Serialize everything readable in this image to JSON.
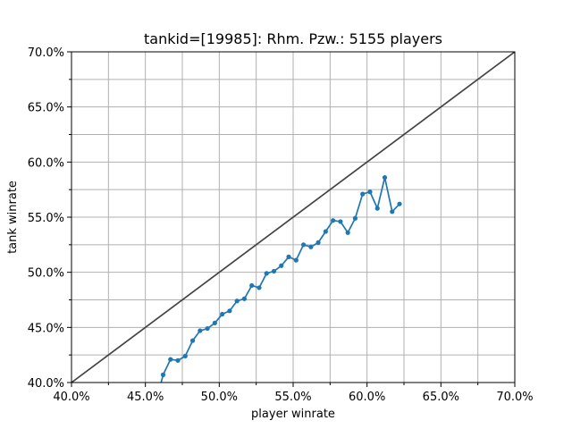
{
  "chart_data": {
    "type": "line",
    "title": "tankid=[19985]: Rhm. Pzw.: 5155 players",
    "xlabel": "player winrate",
    "ylabel": "tank winrate",
    "xlim": [
      0.4,
      0.7
    ],
    "ylim": [
      0.4,
      0.7
    ],
    "grid": true,
    "x_ticks": [
      0.4,
      0.45,
      0.5,
      0.55,
      0.6,
      0.65,
      0.7
    ],
    "x_tick_labels": [
      "40.0%",
      "45.0%",
      "50.0%",
      "55.0%",
      "60.0%",
      "65.0%",
      "70.0%"
    ],
    "y_ticks": [
      0.4,
      0.45,
      0.5,
      0.55,
      0.6,
      0.65,
      0.7
    ],
    "y_tick_labels": [
      "40.0%",
      "45.0%",
      "50.0%",
      "55.0%",
      "60.0%",
      "65.0%",
      "70.0%"
    ],
    "reference_line": {
      "x": [
        0.4,
        0.7
      ],
      "y": [
        0.4,
        0.7
      ],
      "color": "#444444"
    },
    "series": [
      {
        "color": "#1f77b4",
        "x": [
          0.457,
          0.462,
          0.467,
          0.472,
          0.477,
          0.482,
          0.487,
          0.492,
          0.497,
          0.502,
          0.507,
          0.512,
          0.517,
          0.522,
          0.527,
          0.532,
          0.537,
          0.542,
          0.547,
          0.552,
          0.557,
          0.562,
          0.567,
          0.572,
          0.577,
          0.582,
          0.587,
          0.592,
          0.597,
          0.602,
          0.607,
          0.612,
          0.617,
          0.622
        ],
        "y": [
          0.381,
          0.407,
          0.421,
          0.42,
          0.424,
          0.438,
          0.447,
          0.449,
          0.454,
          0.462,
          0.465,
          0.474,
          0.476,
          0.488,
          0.486,
          0.499,
          0.501,
          0.506,
          0.514,
          0.511,
          0.525,
          0.523,
          0.527,
          0.537,
          0.547,
          0.546,
          0.536,
          0.549,
          0.571,
          0.573,
          0.558,
          0.586,
          0.555,
          0.562
        ]
      }
    ]
  }
}
